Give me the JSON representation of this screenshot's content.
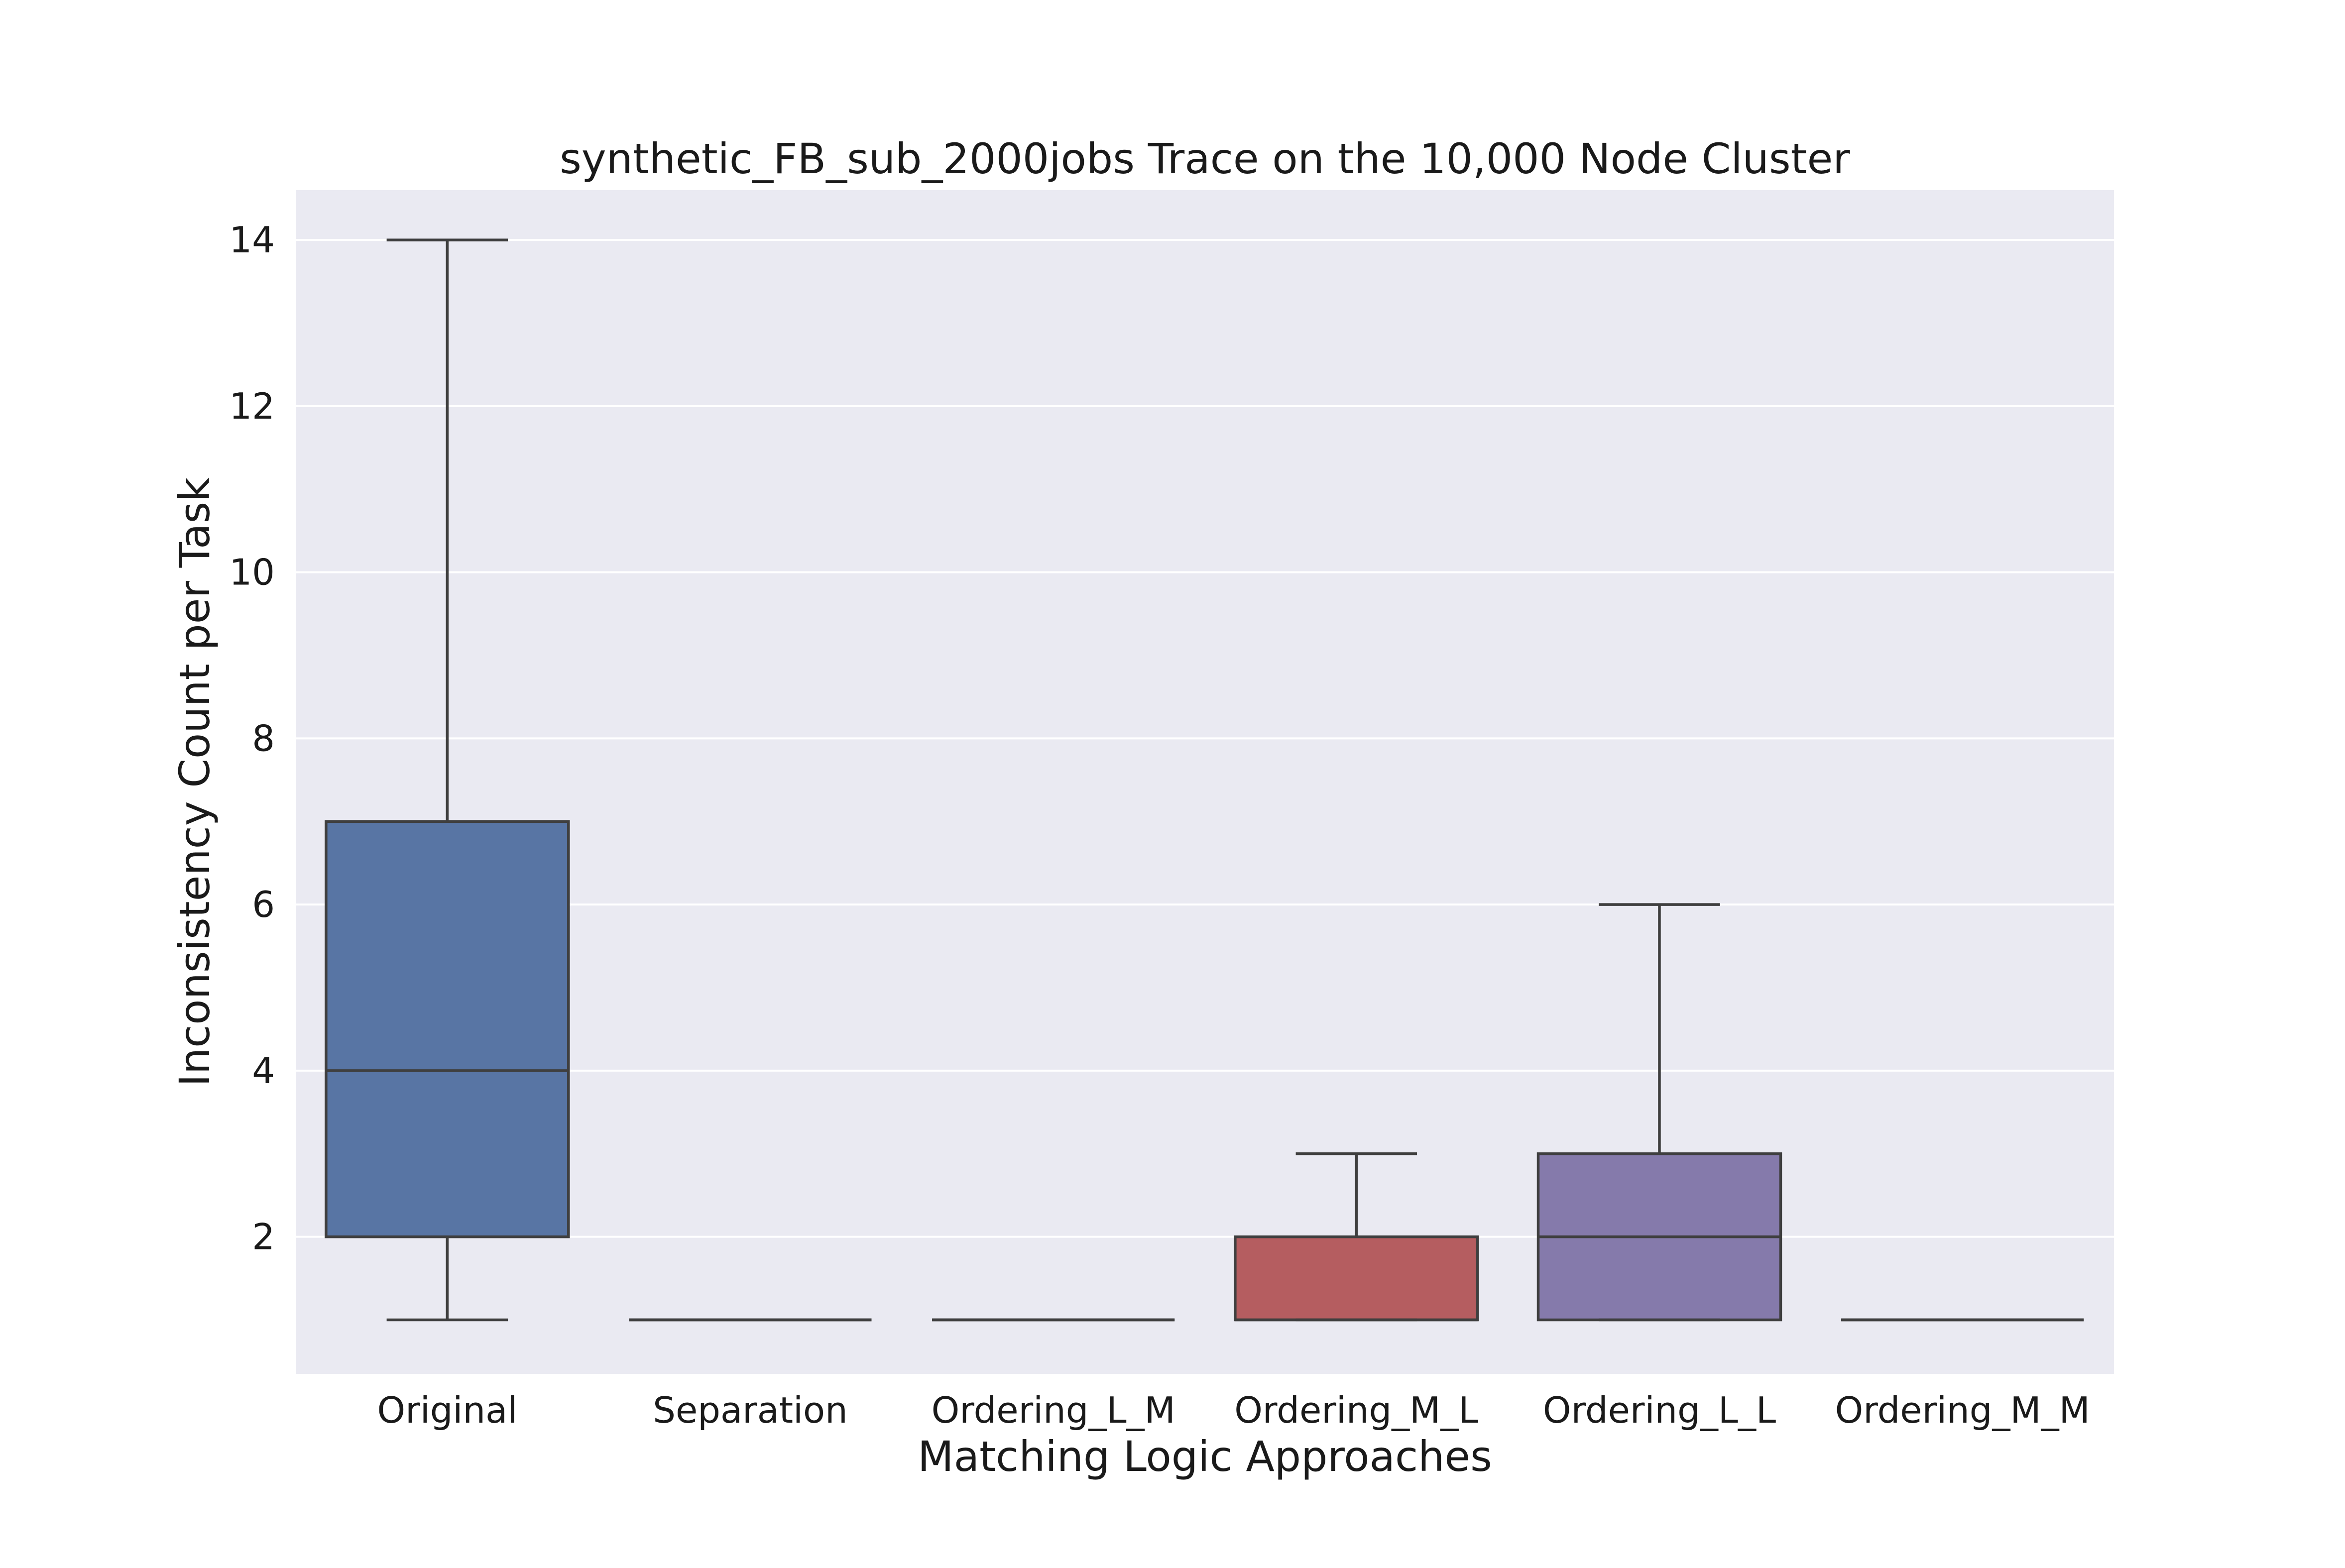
{
  "chart_data": {
    "type": "box",
    "title": "synthetic_FB_sub_2000jobs Trace on the 10,000 Node Cluster",
    "xlabel": "Matching Logic Approaches",
    "ylabel": "Inconsistency Count per Task",
    "ylim": [
      0.35,
      14.6
    ],
    "yticks": [
      2,
      4,
      6,
      8,
      10,
      12,
      14
    ],
    "grid": true,
    "background": "#eaeaf2",
    "categories": [
      "Original",
      "Separation",
      "Ordering_L_M",
      "Ordering_M_L",
      "Ordering_L_L",
      "Ordering_M_M"
    ],
    "boxes": [
      {
        "category": "Original",
        "whisker_low": 1,
        "q1": 2,
        "median": 4,
        "q3": 7,
        "whisker_high": 14,
        "color": "#5875a4"
      },
      {
        "category": "Separation",
        "whisker_low": 1,
        "q1": 1,
        "median": 1,
        "q3": 1,
        "whisker_high": 1,
        "color": "#cc8963"
      },
      {
        "category": "Ordering_L_M",
        "whisker_low": 1,
        "q1": 1,
        "median": 1,
        "q3": 1,
        "whisker_high": 1,
        "color": "#5f9e6e"
      },
      {
        "category": "Ordering_M_L",
        "whisker_low": 1,
        "q1": 1,
        "median": 1,
        "q3": 2,
        "whisker_high": 3,
        "color": "#b55d60"
      },
      {
        "category": "Ordering_L_L",
        "whisker_low": 1,
        "q1": 1,
        "median": 2,
        "q3": 3,
        "whisker_high": 6,
        "color": "#857aab"
      },
      {
        "category": "Ordering_M_M",
        "whisker_low": 1,
        "q1": 1,
        "median": 1,
        "q3": 1,
        "whisker_high": 1,
        "color": "#8d7866"
      }
    ]
  }
}
